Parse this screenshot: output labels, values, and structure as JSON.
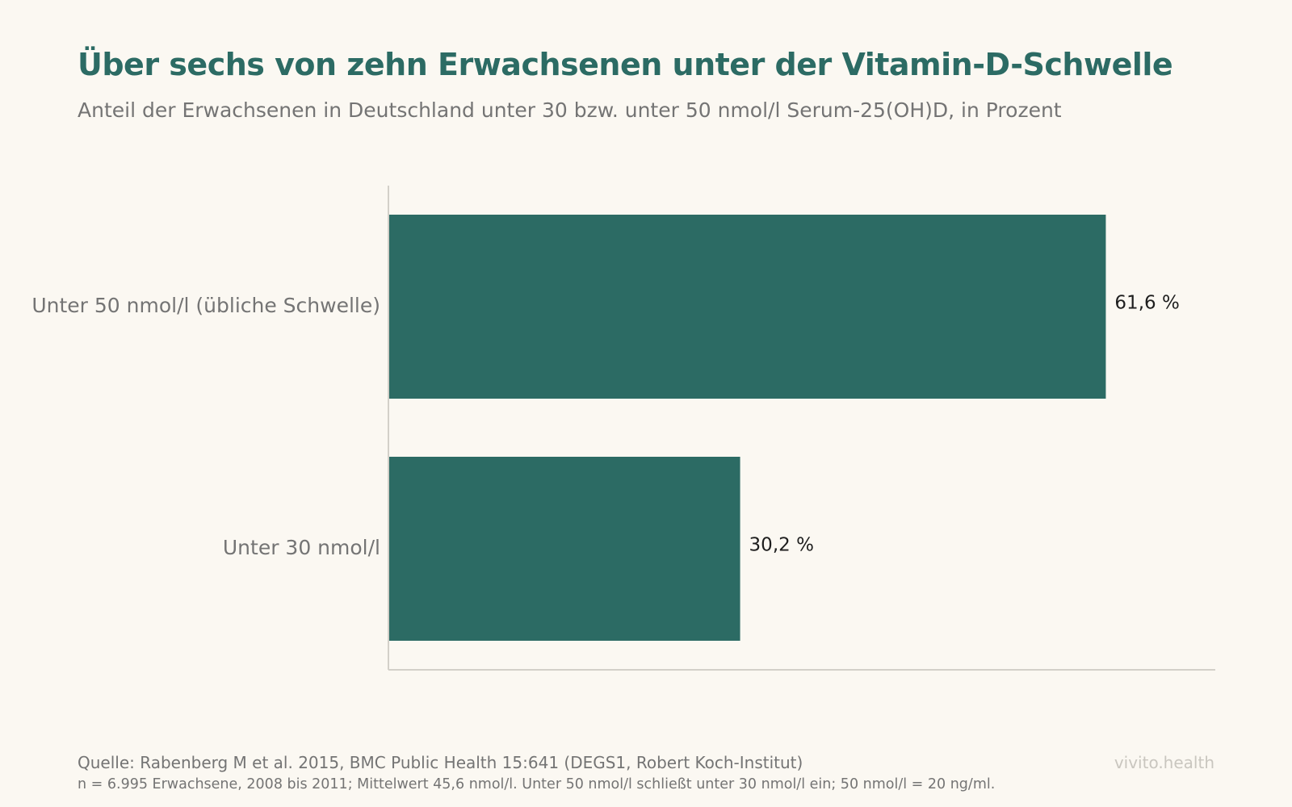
{
  "header": {
    "title": "Über sechs von zehn Erwachsenen unter der Vitamin-D-Schwelle",
    "subtitle": "Anteil der Erwachsenen in Deutschland unter 30 bzw. unter 50 nmol/l Serum-25(OH)D, in Prozent"
  },
  "footer": {
    "source": "Quelle: Rabenberg M et al. 2015, BMC Public Health 15:641 (DEGS1, Robert Koch-Institut)",
    "note": "n = 6.995 Erwachsene, 2008 bis 2011; Mittelwert 45,6 nmol/l. Unter 50 nmol/l schließt unter 30 nmol/l ein; 50 nmol/l = 20 ng/ml.",
    "brand": "vivito.health"
  },
  "colors": {
    "bar": "#2c6b64",
    "axis": "#d3d0c9",
    "background": "#fbf8f2"
  },
  "chart_data": {
    "type": "bar",
    "orientation": "horizontal",
    "categories": [
      "Unter 50 nmol/l (übliche Schwelle)",
      "Unter 30 nmol/l"
    ],
    "values": [
      61.6,
      30.2
    ],
    "value_labels": [
      "61,6 %",
      "30,2 %"
    ],
    "xlim": [
      0,
      71
    ],
    "grid": false,
    "legend": "none"
  }
}
